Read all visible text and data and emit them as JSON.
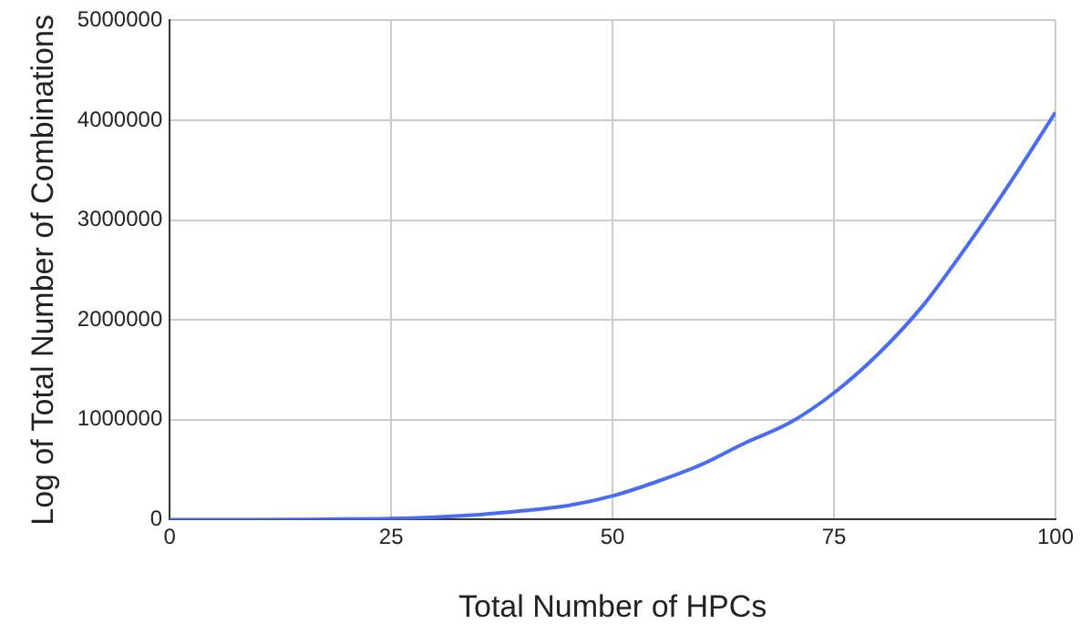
{
  "chart_data": {
    "type": "line",
    "xlabel": "Total Number of HPCs",
    "ylabel": "Log of Total Number of Combinations",
    "x": [
      0,
      5,
      10,
      15,
      20,
      25,
      30,
      35,
      40,
      45,
      50,
      55,
      60,
      65,
      70,
      75,
      80,
      85,
      90,
      95,
      100
    ],
    "series": [
      {
        "color": "#4a6cf0",
        "values": [
          0,
          0,
          0,
          2000,
          5000,
          10000,
          25000,
          50000,
          90000,
          140000,
          237000,
          380000,
          550000,
          770000,
          970000,
          1270000,
          1660000,
          2140000,
          2740000,
          3390000,
          4080000
        ]
      }
    ],
    "xlim": [
      0,
      100
    ],
    "xticks": [
      0,
      25,
      50,
      75,
      100
    ],
    "ylim": [
      0,
      5000000
    ],
    "yticks": [
      0,
      1000000,
      2000000,
      3000000,
      4000000,
      5000000
    ],
    "grid": true,
    "legend": false,
    "marker": "none",
    "line_style": "solid"
  }
}
